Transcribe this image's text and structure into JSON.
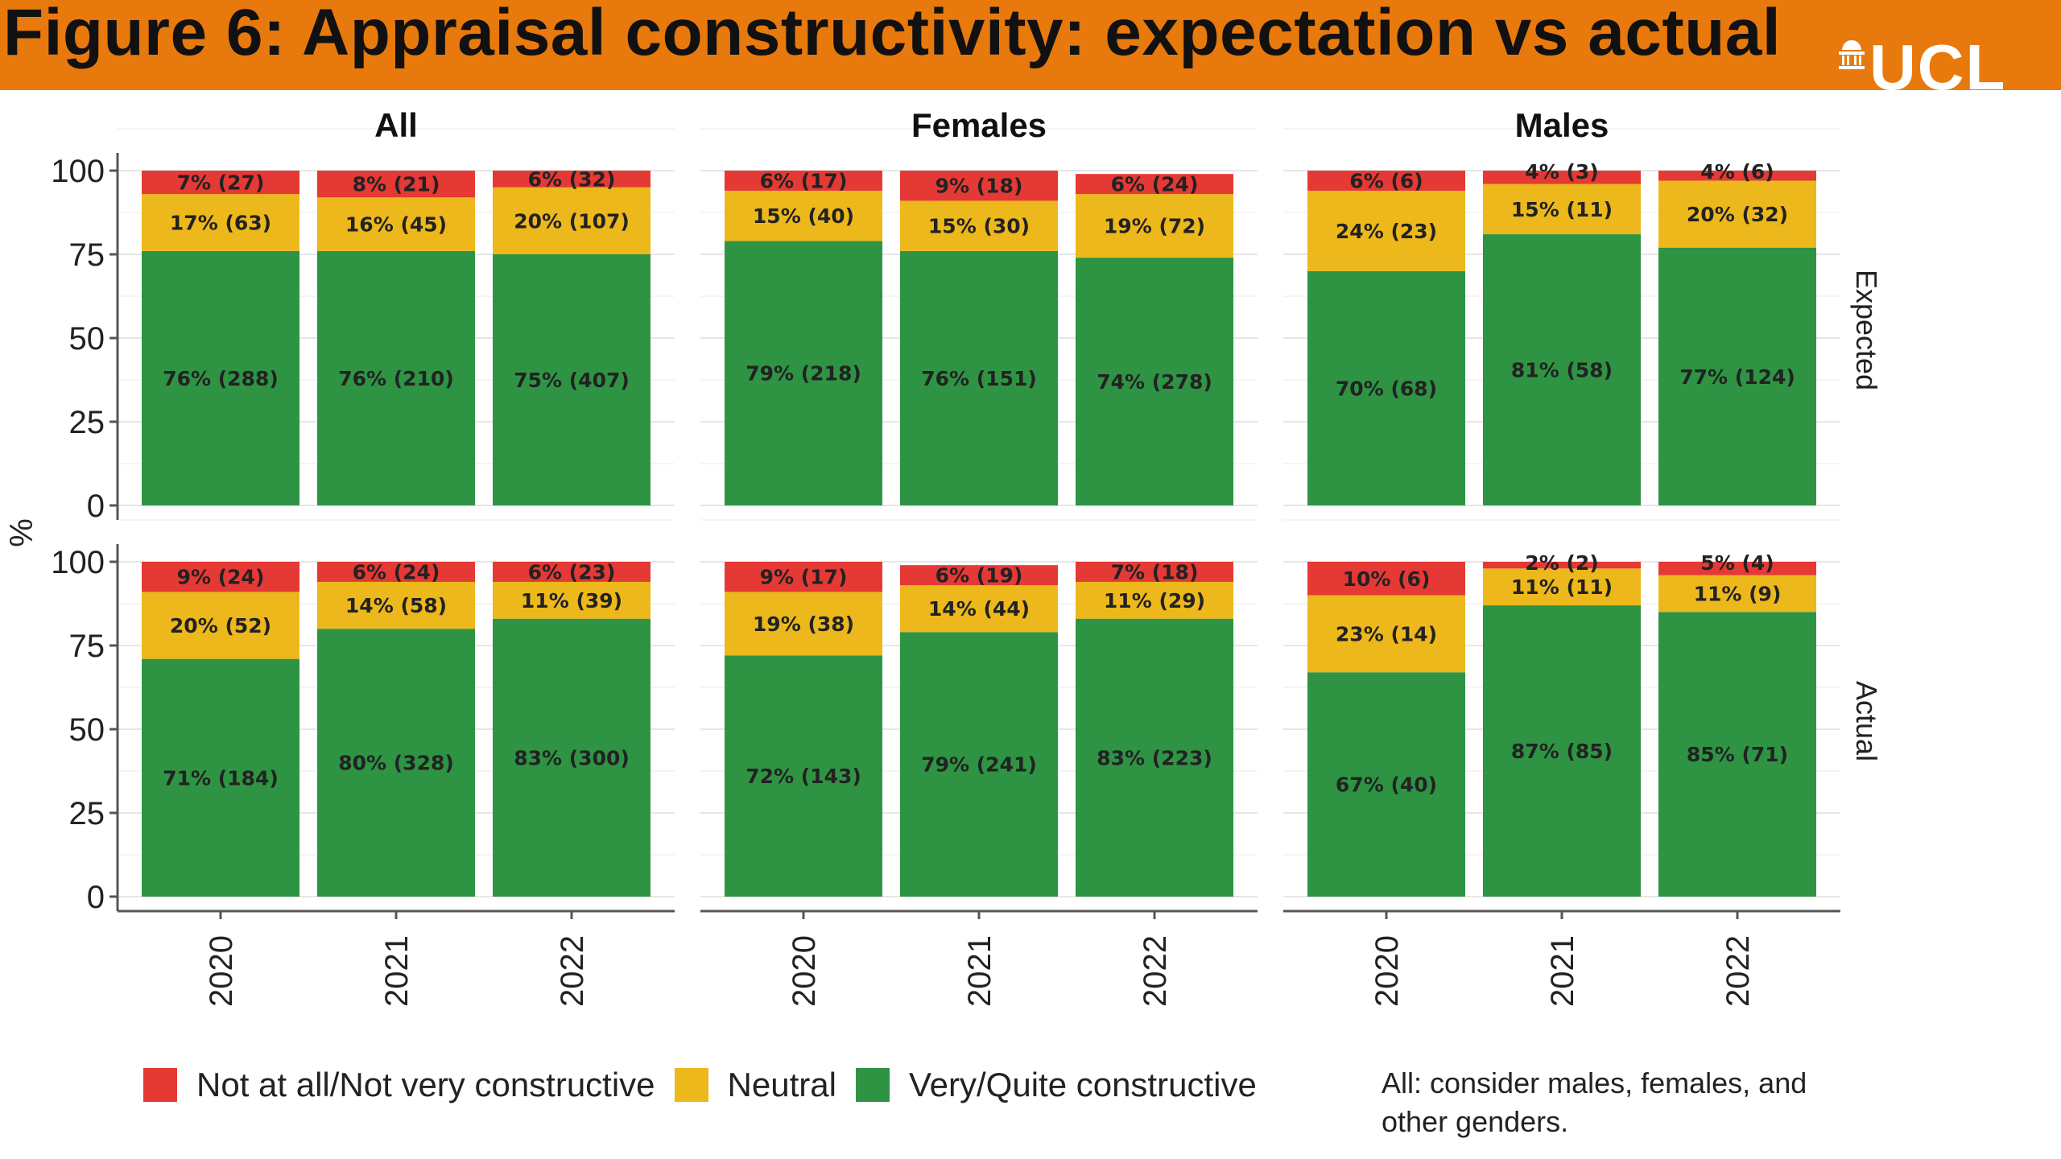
{
  "header": {
    "title": "Figure 6: Appraisal constructivity: expectation vs actual",
    "logo_text": "UCL"
  },
  "colors": {
    "banner": "#E8790D",
    "not_constructive": "#E53935",
    "neutral": "#EDB81B",
    "constructive": "#2E9444"
  },
  "legend": {
    "items": [
      {
        "label": "Not at all/Not very constructive",
        "color": "#E53935"
      },
      {
        "label": "Neutral",
        "color": "#EDB81B"
      },
      {
        "label": "Very/Quite constructive",
        "color": "#2E9444"
      }
    ]
  },
  "note": "All: consider males, females, and other genders.",
  "chart_data": {
    "type": "bar",
    "stacked": true,
    "ylabel": "%",
    "ylim": [
      0,
      100
    ],
    "yticks": [
      0,
      25,
      50,
      75,
      100
    ],
    "columns": [
      "All",
      "Females",
      "Males"
    ],
    "rows": [
      "Expected",
      "Actual"
    ],
    "categories": [
      "2020",
      "2021",
      "2022"
    ],
    "series_names": [
      "Very/Quite constructive",
      "Neutral",
      "Not at all/Not very constructive"
    ],
    "panels": [
      {
        "column": "All",
        "row": "Expected",
        "bars": [
          [
            {
              "v": 76,
              "label": "76% (288)"
            },
            {
              "v": 17,
              "label": "17% (63)"
            },
            {
              "v": 7,
              "label": "7% (27)"
            }
          ],
          [
            {
              "v": 76,
              "label": "76% (210)"
            },
            {
              "v": 16,
              "label": "16% (45)"
            },
            {
              "v": 8,
              "label": "8% (21)"
            }
          ],
          [
            {
              "v": 75,
              "label": "75% (407)"
            },
            {
              "v": 20,
              "label": "20% (107)"
            },
            {
              "v": 6,
              "label": "6% (32)"
            }
          ]
        ]
      },
      {
        "column": "Females",
        "row": "Expected",
        "bars": [
          [
            {
              "v": 79,
              "label": "79% (218)"
            },
            {
              "v": 15,
              "label": "15% (40)"
            },
            {
              "v": 6,
              "label": "6% (17)"
            }
          ],
          [
            {
              "v": 76,
              "label": "76% (151)"
            },
            {
              "v": 15,
              "label": "15% (30)"
            },
            {
              "v": 9,
              "label": "9% (18)"
            }
          ],
          [
            {
              "v": 74,
              "label": "74% (278)"
            },
            {
              "v": 19,
              "label": "19% (72)"
            },
            {
              "v": 6,
              "label": "6% (24)"
            }
          ]
        ]
      },
      {
        "column": "Males",
        "row": "Expected",
        "bars": [
          [
            {
              "v": 70,
              "label": "70% (68)"
            },
            {
              "v": 24,
              "label": "24% (23)"
            },
            {
              "v": 6,
              "label": "6% (6)"
            }
          ],
          [
            {
              "v": 81,
              "label": "81% (58)"
            },
            {
              "v": 15,
              "label": "15% (11)"
            },
            {
              "v": 4,
              "label": "4% (3)"
            }
          ],
          [
            {
              "v": 77,
              "label": "77% (124)"
            },
            {
              "v": 20,
              "label": "20% (32)"
            },
            {
              "v": 4,
              "label": "4% (6)"
            }
          ]
        ]
      },
      {
        "column": "All",
        "row": "Actual",
        "bars": [
          [
            {
              "v": 71,
              "label": "71% (184)"
            },
            {
              "v": 20,
              "label": "20% (52)"
            },
            {
              "v": 9,
              "label": "9% (24)"
            }
          ],
          [
            {
              "v": 80,
              "label": "80% (328)"
            },
            {
              "v": 14,
              "label": "14% (58)"
            },
            {
              "v": 6,
              "label": "6% (24)"
            }
          ],
          [
            {
              "v": 83,
              "label": "83% (300)"
            },
            {
              "v": 11,
              "label": "11% (39)"
            },
            {
              "v": 6,
              "label": "6% (23)"
            }
          ]
        ]
      },
      {
        "column": "Females",
        "row": "Actual",
        "bars": [
          [
            {
              "v": 72,
              "label": "72% (143)"
            },
            {
              "v": 19,
              "label": "19% (38)"
            },
            {
              "v": 9,
              "label": "9% (17)"
            }
          ],
          [
            {
              "v": 79,
              "label": "79% (241)"
            },
            {
              "v": 14,
              "label": "14% (44)"
            },
            {
              "v": 6,
              "label": "6% (19)"
            }
          ],
          [
            {
              "v": 83,
              "label": "83% (223)"
            },
            {
              "v": 11,
              "label": "11% (29)"
            },
            {
              "v": 7,
              "label": "7% (18)"
            }
          ]
        ]
      },
      {
        "column": "Males",
        "row": "Actual",
        "bars": [
          [
            {
              "v": 67,
              "label": "67% (40)"
            },
            {
              "v": 23,
              "label": "23% (14)"
            },
            {
              "v": 10,
              "label": "10% (6)"
            }
          ],
          [
            {
              "v": 87,
              "label": "87% (85)"
            },
            {
              "v": 11,
              "label": "11% (11)"
            },
            {
              "v": 2,
              "label": "2% (2)"
            }
          ],
          [
            {
              "v": 85,
              "label": "85% (71)"
            },
            {
              "v": 11,
              "label": "11% (9)"
            },
            {
              "v": 5,
              "label": "5% (4)"
            }
          ]
        ]
      }
    ]
  }
}
